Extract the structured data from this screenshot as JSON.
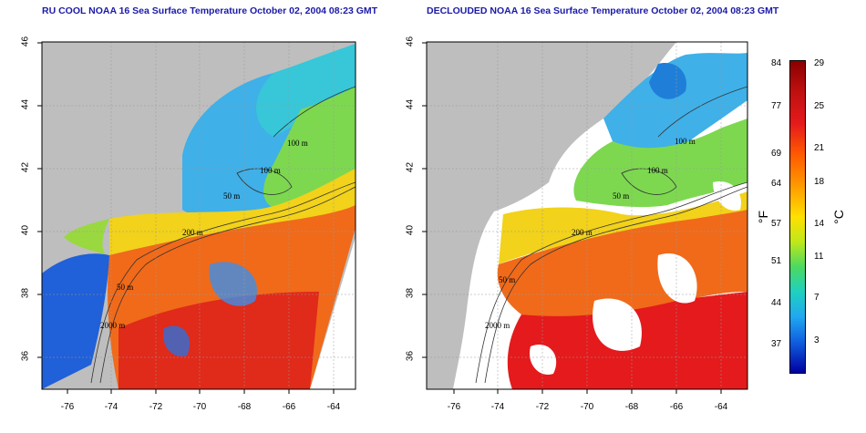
{
  "titles": {
    "left": "RU COOL NOAA 16 Sea Surface Temperature October 02, 2004 08:23 GMT",
    "right": "DECLOUDED NOAA 16 Sea Surface Temperature October 02, 2004 08:23 GMT"
  },
  "axes": {
    "x_ticks": [
      "-76",
      "-74",
      "-72",
      "-70",
      "-68",
      "-66",
      "-64"
    ],
    "y_ticks": [
      "46",
      "44",
      "42",
      "40",
      "38",
      "36"
    ]
  },
  "contour_labels": {
    "left": [
      "100 m",
      "100 m",
      "50 m",
      "200 m",
      "50 m",
      "2000 m"
    ],
    "right": [
      "100 m",
      "100 m",
      "50 m",
      "200 m",
      "50 m",
      "2000 m"
    ]
  },
  "colorbar": {
    "fahrenheit": [
      "84",
      "77",
      "69",
      "64",
      "57",
      "51",
      "44",
      "37"
    ],
    "celsius": [
      "29",
      "25",
      "21",
      "18",
      "14",
      "11",
      "7",
      "3"
    ],
    "unit_f": "°F",
    "unit_c": "°C"
  },
  "colors": {
    "land": "#bebebe",
    "warm": "#e41a1c",
    "cold": "#1f4fd8",
    "title": "#1a1aa8"
  }
}
